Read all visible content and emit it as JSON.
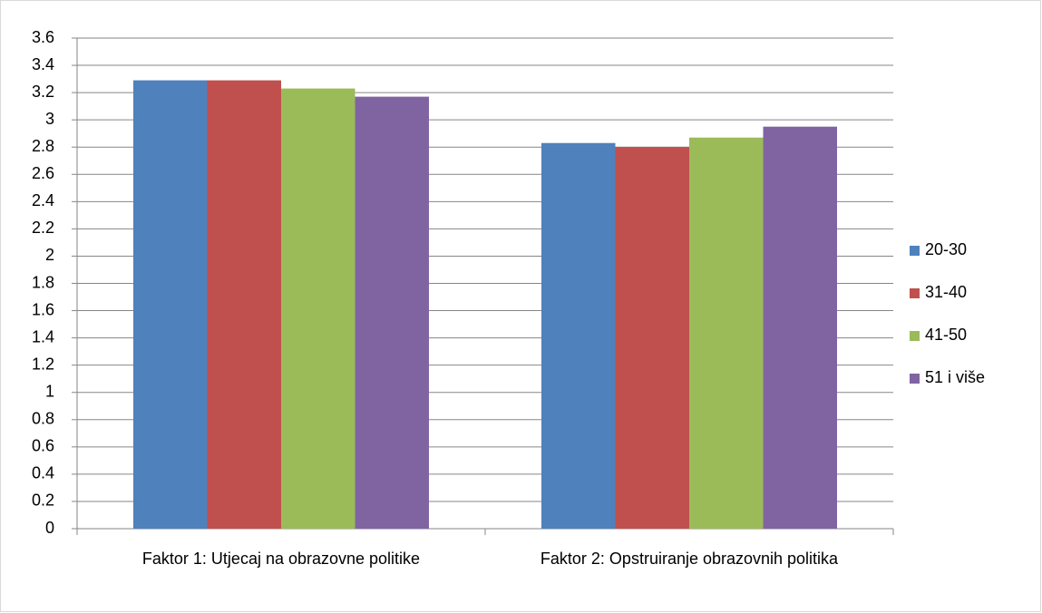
{
  "chart_data": {
    "type": "bar",
    "categories": [
      "Faktor 1: Utjecaj na obrazovne politike",
      "Faktor 2: Opstruiranje obrazovnih politika"
    ],
    "series": [
      {
        "name": "20-30",
        "color": "#4f81bd",
        "values": [
          3.29,
          2.83
        ]
      },
      {
        "name": "31-40",
        "color": "#c0504d",
        "values": [
          3.29,
          2.8
        ]
      },
      {
        "name": "41-50",
        "color": "#9bbb59",
        "values": [
          3.23,
          2.87
        ]
      },
      {
        "name": "51 i više",
        "color": "#8064a2",
        "values": [
          3.17,
          2.95
        ]
      }
    ],
    "ylim": [
      0,
      3.6
    ],
    "yticks": [
      0,
      0.2,
      0.4,
      0.6,
      0.8,
      1,
      1.2,
      1.4,
      1.6,
      1.8,
      2,
      2.2,
      2.4,
      2.6,
      2.8,
      3,
      3.2,
      3.4,
      3.6
    ],
    "grid": true,
    "legend": "right"
  }
}
